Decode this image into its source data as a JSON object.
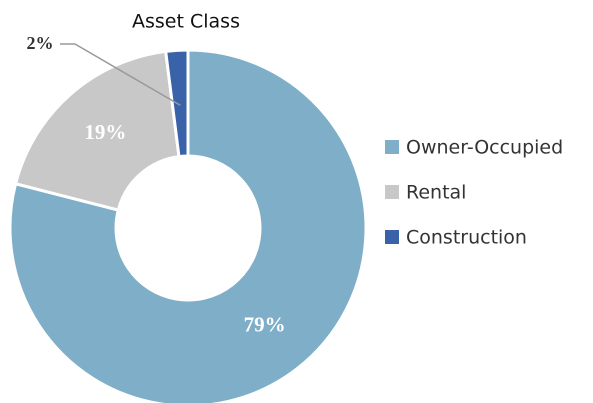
{
  "chart_data": {
    "type": "pie",
    "title": "Asset Class",
    "categories": [
      "Owner-Occupied",
      "Rental",
      "Construction"
    ],
    "values": [
      79,
      19,
      2
    ],
    "value_labels": [
      "79%",
      "19%",
      "2%"
    ],
    "colors": [
      "#7fafc8",
      "#c8c8c8",
      "#3a62a8"
    ],
    "donut": true,
    "legend": "right"
  }
}
